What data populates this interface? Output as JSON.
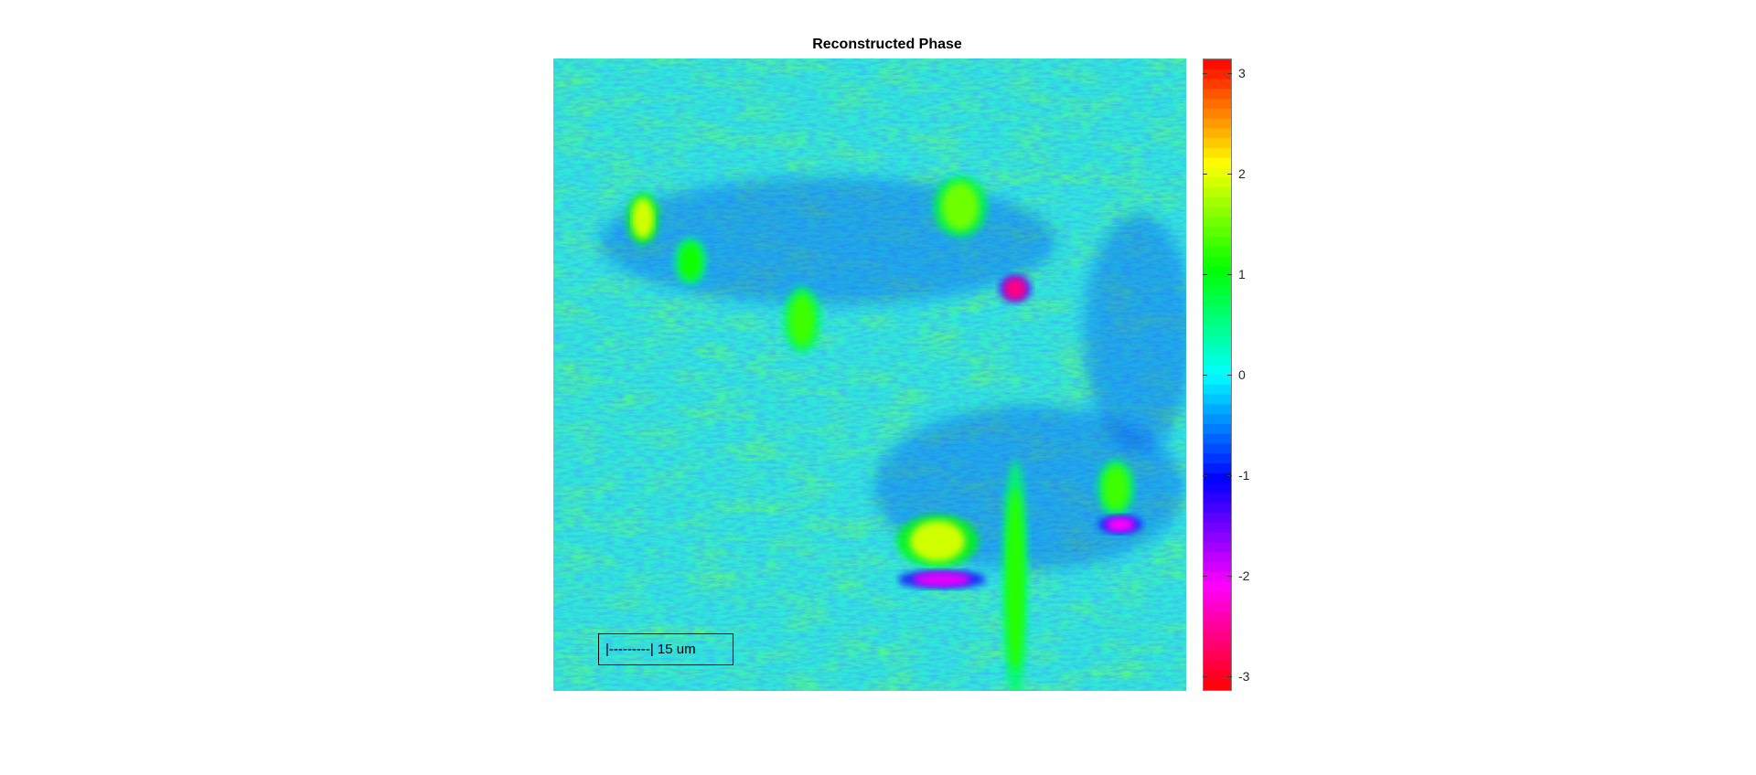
{
  "chart_data": {
    "type": "heatmap",
    "title": "Reconstructed Phase",
    "colormap": "hsv",
    "color_limits": [
      -3.14159,
      3.14159
    ],
    "colorbar": {
      "position": "right",
      "ticks": [
        3,
        2,
        1,
        0,
        -1,
        -2,
        -3
      ],
      "tick_labels": [
        "3",
        "2",
        "1",
        "0",
        "-1",
        "-2",
        "-3"
      ]
    },
    "background_value": -0.3,
    "features": [
      {
        "id": "blob-top-left",
        "value": 1.9
      },
      {
        "id": "blob-upper-left-small",
        "value": 1.1
      },
      {
        "id": "blob-left-mid",
        "value": 1.3
      },
      {
        "id": "blob-top-center",
        "value": 1.5
      },
      {
        "id": "spot-right-center",
        "value": -2.6
      },
      {
        "id": "blob-lower-center",
        "value": 1.9
      },
      {
        "id": "band-lower-center",
        "value": -2.0
      },
      {
        "id": "streak-lower-right",
        "value": 1.2
      },
      {
        "id": "blob-lower-right",
        "value": 1.3
      },
      {
        "id": "spot-lower-right-yellow",
        "value": -2.1
      }
    ],
    "annotation": {
      "text": "|---------| 15 um",
      "boxed": true,
      "placement": "bottom-left"
    }
  }
}
